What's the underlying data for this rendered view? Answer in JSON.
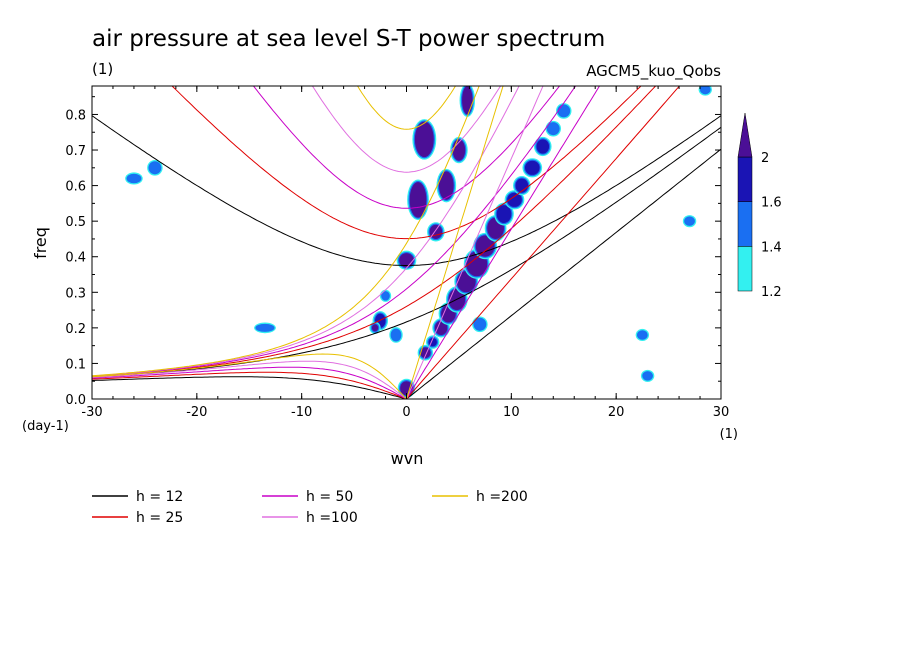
{
  "chart_data": {
    "type": "heatmap",
    "title": "air pressure at sea level S-T power spectrum",
    "subtitle_left": "(1)",
    "subtitle_right": "AGCM5_kuo_Qobs",
    "xlabel": "wvn",
    "ylabel": "freq",
    "x_unit": "(1)",
    "y_unit": "(day-1)",
    "xlim": [
      -30,
      30
    ],
    "ylim": [
      0,
      0.88
    ],
    "x_ticks": [
      -30,
      -20,
      -10,
      0,
      10,
      20,
      30
    ],
    "x_tick_labels": [
      "-30",
      "-20",
      "-10",
      "0",
      "10",
      "20",
      "30"
    ],
    "y_ticks": [
      0,
      0.1,
      0.2,
      0.3,
      0.4,
      0.5,
      0.6,
      0.7,
      0.8
    ],
    "y_tick_labels": [
      "0.0",
      "0.1",
      "0.2",
      "0.3",
      "0.4",
      "0.5",
      "0.6",
      "0.7",
      "0.8"
    ],
    "grid": false,
    "colorbar": {
      "levels": [
        1.2,
        1.4,
        1.6,
        2
      ],
      "labels": [
        "1.2",
        "1.4",
        "1.6",
        "2"
      ],
      "colors": [
        "#33f0f0",
        "#1a6ff2",
        "#1a14b4",
        "#4b0f96"
      ]
    },
    "dispersion_curves": [
      {
        "h": 12,
        "label": "h = 12",
        "color": "#000000"
      },
      {
        "h": 25,
        "label": "h = 25",
        "color": "#e00000"
      },
      {
        "h": 50,
        "label": "h = 50",
        "color": "#c800c8"
      },
      {
        "h": 100,
        "label": "h =100",
        "color": "#e070e0"
      },
      {
        "h": 200,
        "label": "h =200",
        "color": "#e8c000"
      }
    ],
    "power_blobs": [
      {
        "x": 0.0,
        "y": 0.03,
        "rx": 0.6,
        "ry": 0.02,
        "level": 2
      },
      {
        "x": 1.8,
        "y": 0.13,
        "rx": 0.5,
        "ry": 0.015,
        "level": 2
      },
      {
        "x": 2.5,
        "y": 0.16,
        "rx": 0.4,
        "ry": 0.012,
        "level": 1.6
      },
      {
        "x": 3.3,
        "y": 0.2,
        "rx": 0.6,
        "ry": 0.02,
        "level": 2
      },
      {
        "x": 4.0,
        "y": 0.24,
        "rx": 0.7,
        "ry": 0.025,
        "level": 2
      },
      {
        "x": 4.8,
        "y": 0.28,
        "rx": 0.8,
        "ry": 0.03,
        "level": 2
      },
      {
        "x": 5.7,
        "y": 0.33,
        "rx": 0.9,
        "ry": 0.03,
        "level": 2
      },
      {
        "x": 6.7,
        "y": 0.38,
        "rx": 1.0,
        "ry": 0.035,
        "level": 2
      },
      {
        "x": 7.5,
        "y": 0.43,
        "rx": 0.9,
        "ry": 0.03,
        "level": 2
      },
      {
        "x": 8.5,
        "y": 0.48,
        "rx": 0.8,
        "ry": 0.03,
        "level": 2
      },
      {
        "x": 9.3,
        "y": 0.52,
        "rx": 0.7,
        "ry": 0.025,
        "level": 1.6
      },
      {
        "x": 10.3,
        "y": 0.56,
        "rx": 0.7,
        "ry": 0.02,
        "level": 1.6
      },
      {
        "x": 11.0,
        "y": 0.6,
        "rx": 0.6,
        "ry": 0.02,
        "level": 1.6
      },
      {
        "x": 12.0,
        "y": 0.65,
        "rx": 0.7,
        "ry": 0.02,
        "level": 1.6
      },
      {
        "x": 13.0,
        "y": 0.71,
        "rx": 0.6,
        "ry": 0.02,
        "level": 1.6
      },
      {
        "x": 14.0,
        "y": 0.76,
        "rx": 0.5,
        "ry": 0.015,
        "level": 1.4
      },
      {
        "x": 15.0,
        "y": 0.81,
        "rx": 0.5,
        "ry": 0.015,
        "level": 1.4
      },
      {
        "x": 0.0,
        "y": 0.39,
        "rx": 0.7,
        "ry": 0.02,
        "level": 2
      },
      {
        "x": 2.8,
        "y": 0.47,
        "rx": 0.6,
        "ry": 0.02,
        "level": 2
      },
      {
        "x": 1.1,
        "y": 0.56,
        "rx": 0.8,
        "ry": 0.05,
        "level": 2
      },
      {
        "x": 3.8,
        "y": 0.6,
        "rx": 0.7,
        "ry": 0.04,
        "level": 2
      },
      {
        "x": 1.7,
        "y": 0.73,
        "rx": 0.9,
        "ry": 0.05,
        "level": 2
      },
      {
        "x": 5.0,
        "y": 0.7,
        "rx": 0.6,
        "ry": 0.03,
        "level": 2
      },
      {
        "x": 5.8,
        "y": 0.84,
        "rx": 0.5,
        "ry": 0.04,
        "level": 2
      },
      {
        "x": -2.5,
        "y": 0.22,
        "rx": 0.5,
        "ry": 0.02,
        "level": 1.6
      },
      {
        "x": -3.0,
        "y": 0.2,
        "rx": 0.3,
        "ry": 0.01,
        "level": 2
      },
      {
        "x": -1.0,
        "y": 0.18,
        "rx": 0.4,
        "ry": 0.015,
        "level": 1.4
      },
      {
        "x": -2.0,
        "y": 0.29,
        "rx": 0.3,
        "ry": 0.01,
        "level": 1.4
      },
      {
        "x": 7.0,
        "y": 0.21,
        "rx": 0.5,
        "ry": 0.015,
        "level": 1.4
      },
      {
        "x": -24.0,
        "y": 0.65,
        "rx": 0.5,
        "ry": 0.015,
        "level": 1.4
      },
      {
        "x": -26.0,
        "y": 0.62,
        "rx": 0.6,
        "ry": 0.01,
        "level": 1.4
      },
      {
        "x": -13.5,
        "y": 0.2,
        "rx": 0.8,
        "ry": 0.008,
        "level": 1.4
      },
      {
        "x": 23.0,
        "y": 0.065,
        "rx": 0.4,
        "ry": 0.01,
        "level": 1.4
      },
      {
        "x": 27.0,
        "y": 0.5,
        "rx": 0.4,
        "ry": 0.01,
        "level": 1.4
      },
      {
        "x": 22.5,
        "y": 0.18,
        "rx": 0.4,
        "ry": 0.01,
        "level": 1.4
      },
      {
        "x": 28.5,
        "y": 0.87,
        "rx": 0.4,
        "ry": 0.01,
        "level": 1.4
      }
    ]
  }
}
